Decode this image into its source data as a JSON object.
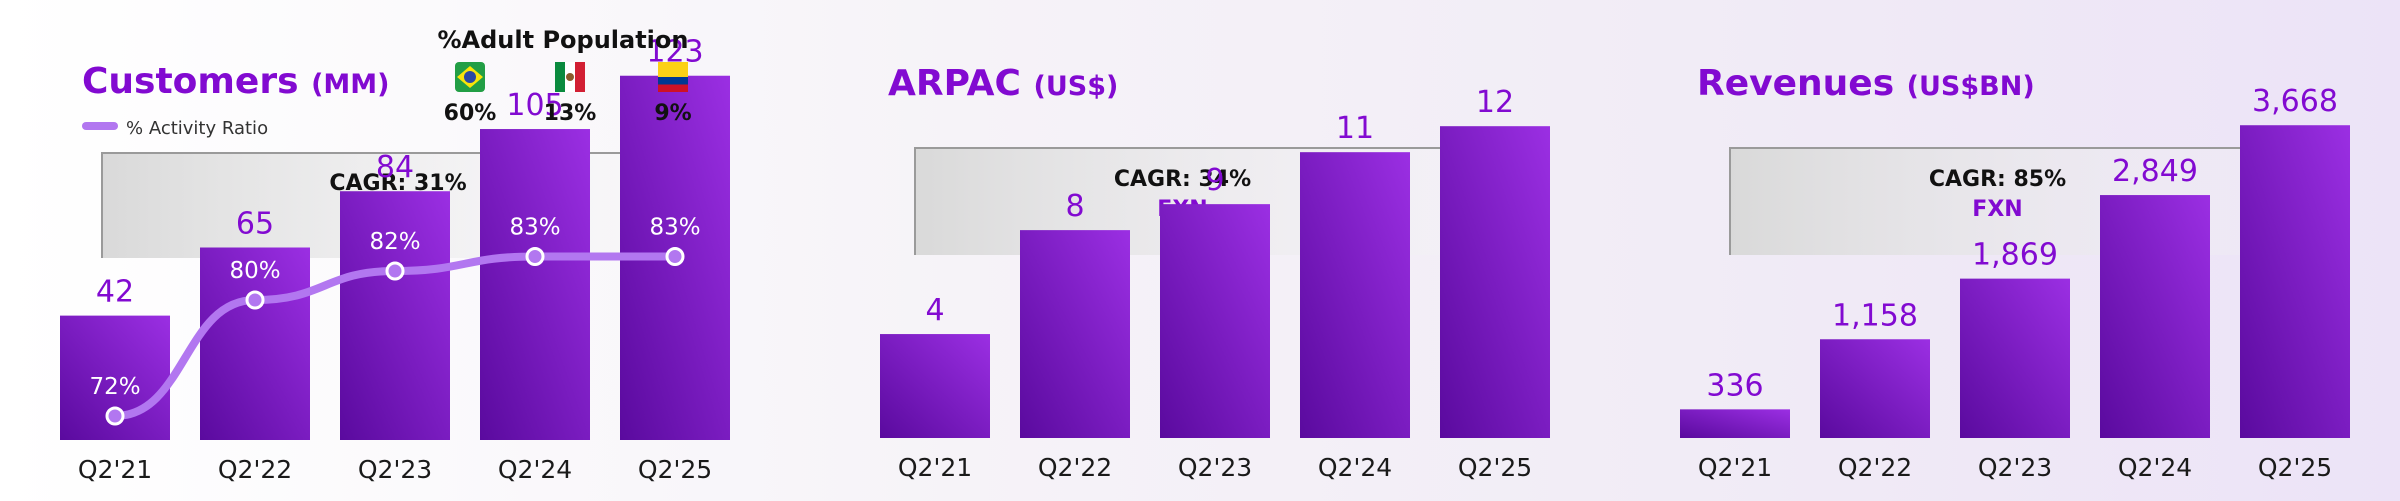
{
  "colors": {
    "accent": "#820ad1",
    "bar_light": "#9b2fe3",
    "bar_dark": "#5a0a9e",
    "line": "#b277f0"
  },
  "chart_data": [
    {
      "type": "bar",
      "title": "Customers",
      "unit": "(MM)",
      "categories": [
        "Q2'21",
        "Q2'22",
        "Q2'23",
        "Q2'24",
        "Q2'25"
      ],
      "values": [
        42,
        65,
        84,
        105,
        123
      ],
      "labels": [
        "42",
        "65",
        "84",
        "105",
        "123"
      ],
      "ylim": [
        0,
        130
      ],
      "cagr": "CAGR: 31%",
      "line_series": {
        "name": "% Activity Ratio",
        "values": [
          72,
          80,
          82,
          83,
          83
        ],
        "labels": [
          "72%",
          "80%",
          "82%",
          "83%",
          "83%"
        ]
      },
      "adult_population": {
        "title": "%Adult Population",
        "items": [
          {
            "country": "brazil",
            "icon": "brazil-flag-icon",
            "value": "60%"
          },
          {
            "country": "mexico",
            "icon": "mexico-flag-icon",
            "value": "13%"
          },
          {
            "country": "colombia",
            "icon": "colombia-flag-icon",
            "value": "9%"
          }
        ]
      }
    },
    {
      "type": "bar",
      "title": "ARPAC",
      "unit": "(US$)",
      "categories": [
        "Q2'21",
        "Q2'22",
        "Q2'23",
        "Q2'24",
        "Q2'25"
      ],
      "values": [
        4,
        8,
        9,
        11,
        12
      ],
      "labels": [
        "4",
        "8",
        "9",
        "11",
        "12"
      ],
      "ylim": [
        0,
        12.7
      ],
      "cagr": "CAGR: 34%",
      "cagr_note": "FXN"
    },
    {
      "type": "bar",
      "title": "Revenues",
      "unit": "(US$BN)",
      "categories": [
        "Q2'21",
        "Q2'22",
        "Q2'23",
        "Q2'24",
        "Q2'25"
      ],
      "values": [
        336,
        1158,
        1869,
        2849,
        3668
      ],
      "labels": [
        "336",
        "1,158",
        "1,869",
        "2,849",
        "3,668"
      ],
      "ylim": [
        0,
        3870
      ],
      "cagr": "CAGR: 85%",
      "cagr_note": "FXN"
    }
  ]
}
